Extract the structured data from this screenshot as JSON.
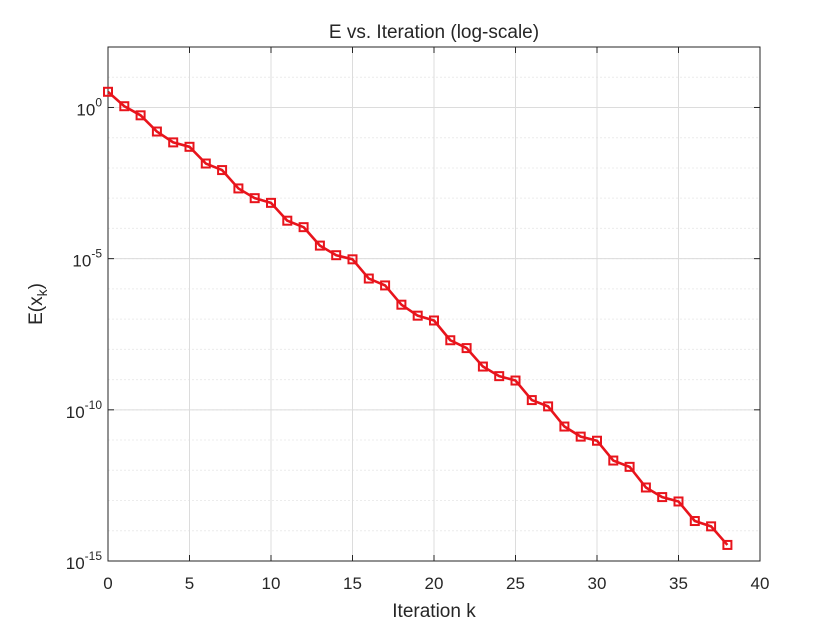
{
  "chart_data": {
    "type": "line",
    "title": "E vs. Iteration (log-scale)",
    "xlabel": "Iteration k",
    "ylabel_main": "E(x",
    "ylabel_sub": "k",
    "ylabel_close": ")",
    "xlim": [
      0,
      40
    ],
    "ylim": [
      1e-15,
      100.0
    ],
    "yscale": "log",
    "grid": true,
    "minor_grid": true,
    "x_ticks": [
      "0",
      "5",
      "10",
      "15",
      "20",
      "25",
      "30",
      "35",
      "40"
    ],
    "y_ticks": [
      {
        "base": "10",
        "exp": "0"
      },
      {
        "base": "10",
        "exp": "-5"
      },
      {
        "base": "10",
        "exp": "-10"
      },
      {
        "base": "10",
        "exp": "-15"
      }
    ],
    "series": [
      {
        "color": "#e8141c",
        "marker": "square",
        "x": [
          0,
          1,
          2,
          3,
          4,
          5,
          6,
          7,
          8,
          9,
          10,
          11,
          12,
          13,
          14,
          15,
          16,
          17,
          18,
          19,
          20,
          21,
          22,
          23,
          24,
          25,
          26,
          27,
          28,
          29,
          30,
          31,
          32,
          33,
          34,
          35,
          36,
          37,
          38
        ],
        "y": [
          3.3,
          1.1,
          0.55,
          0.16,
          0.07,
          0.05,
          0.014,
          0.0085,
          0.0021,
          0.001,
          0.0007,
          0.00018,
          0.00011,
          2.7e-05,
          1.3e-05,
          9.5e-06,
          2.2e-06,
          1.3e-06,
          3e-07,
          1.3e-07,
          9e-08,
          2e-08,
          1.1e-08,
          2.7e-09,
          1.3e-09,
          9.3e-10,
          2.1e-10,
          1.3e-10,
          2.8e-11,
          1.3e-11,
          9.5e-12,
          2.1e-12,
          1.3e-12,
          2.7e-13,
          1.3e-13,
          9.3e-14,
          2.1e-14,
          1.4e-14,
          3.4e-15
        ]
      }
    ]
  }
}
